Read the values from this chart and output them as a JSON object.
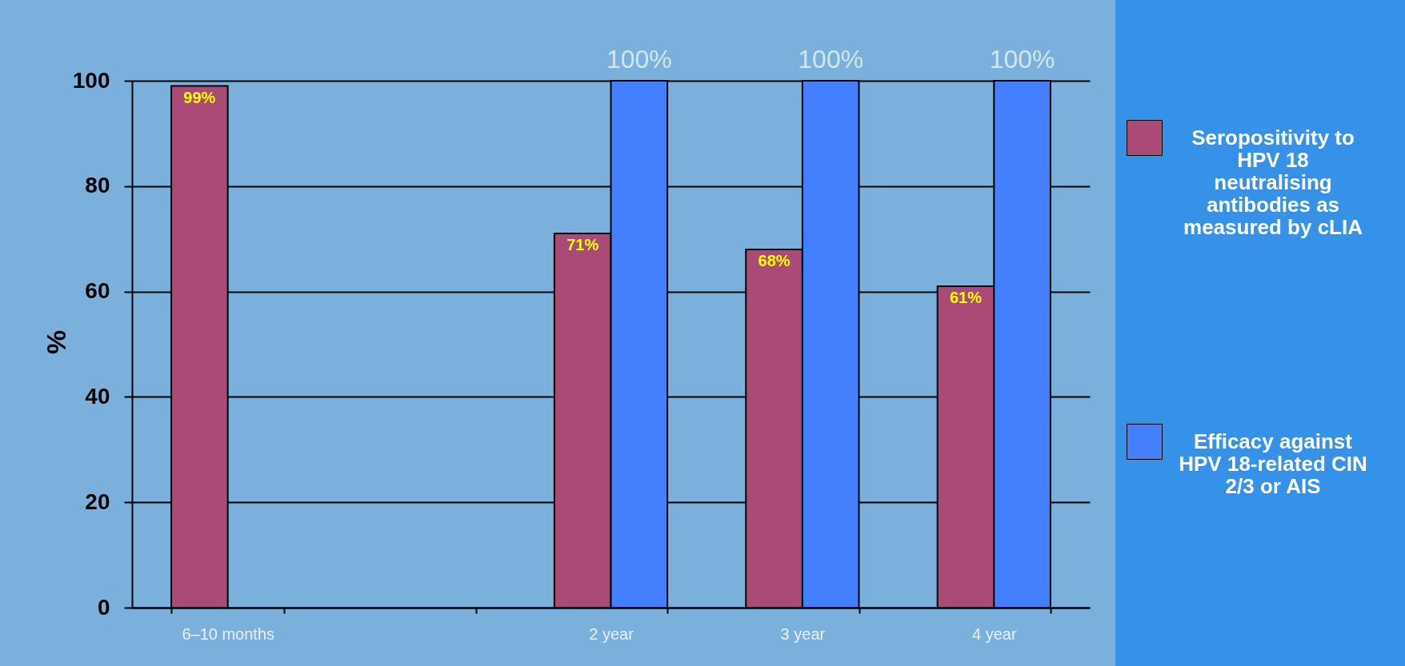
{
  "chart_data": {
    "type": "bar",
    "ylabel": "%",
    "categories": [
      "6–10 months",
      null,
      "2 year",
      "3 year",
      "4 year"
    ],
    "series": [
      {
        "name": "Seropositivity to HPV 18 neutralising antibodies as measured by cLIA",
        "color": "#a94a77",
        "values": [
          99,
          null,
          71,
          68,
          61
        ],
        "value_labels": [
          "99%",
          null,
          "71%",
          "68%",
          "61%"
        ]
      },
      {
        "name": "Efficacy against HPV 18-related CIN 2/3 or AIS",
        "color": "#447ffe",
        "values": [
          null,
          null,
          100,
          100,
          100
        ],
        "value_labels": [
          null,
          null,
          "100%",
          "100%",
          "100%"
        ]
      }
    ],
    "ylim": [
      0,
      100
    ],
    "yticks": [
      0,
      20,
      40,
      60,
      80,
      100
    ],
    "grid": "y",
    "legend": "right"
  }
}
